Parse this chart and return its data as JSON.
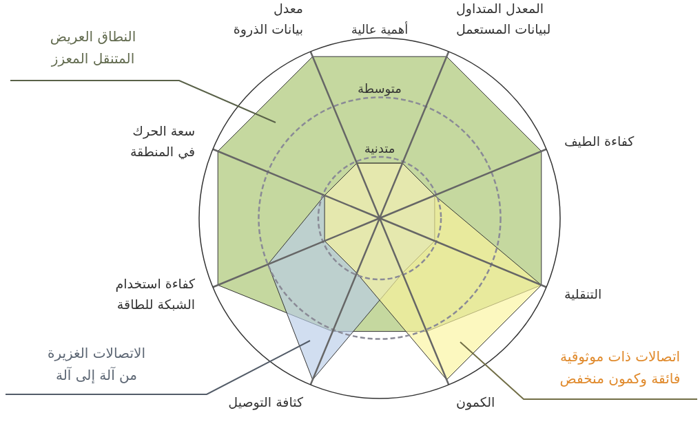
{
  "chart_data": {
    "type": "radar",
    "categories": [
      "المعدل المتداول\nلبيانات المستعمل",
      "كفاءة الطيف",
      "التنقلية",
      "الكمون",
      "كثافة التوصيل",
      "كفاءة استخدام\nالشبكة للطاقة",
      "سعة الحرك\nفي المنطقة",
      "معدل\nبيانات الذروة"
    ],
    "ylim": [
      0,
      1
    ],
    "yticks": [
      {
        "value": 0.34,
        "label": "متدنية"
      },
      {
        "value": 0.67,
        "label": "متوسطة"
      },
      {
        "value": 1,
        "label": "أهمية عالية"
      }
    ],
    "grid": true,
    "series": [
      {
        "name": "النطاق العريض\nالمتنقل المعزز",
        "color": "#c5d89f",
        "values": [
          0.97,
          0.97,
          0.97,
          0.68,
          0.68,
          0.97,
          0.97,
          0.97
        ]
      },
      {
        "name": "الاتصالات الغزيرة\nمن آلة إلى آلة",
        "color": "#b9cde8",
        "values": [
          0.33,
          0.33,
          0.33,
          0.33,
          0.97,
          0.67,
          0.33,
          0.33
        ]
      },
      {
        "name": "اتصالات ذات موثوقية\nفائقة وكمون منخفض",
        "color": "#fbf59c",
        "values": [
          0.33,
          0.33,
          0.97,
          0.97,
          0.33,
          0.33,
          0.33,
          0.33
        ]
      }
    ]
  }
}
